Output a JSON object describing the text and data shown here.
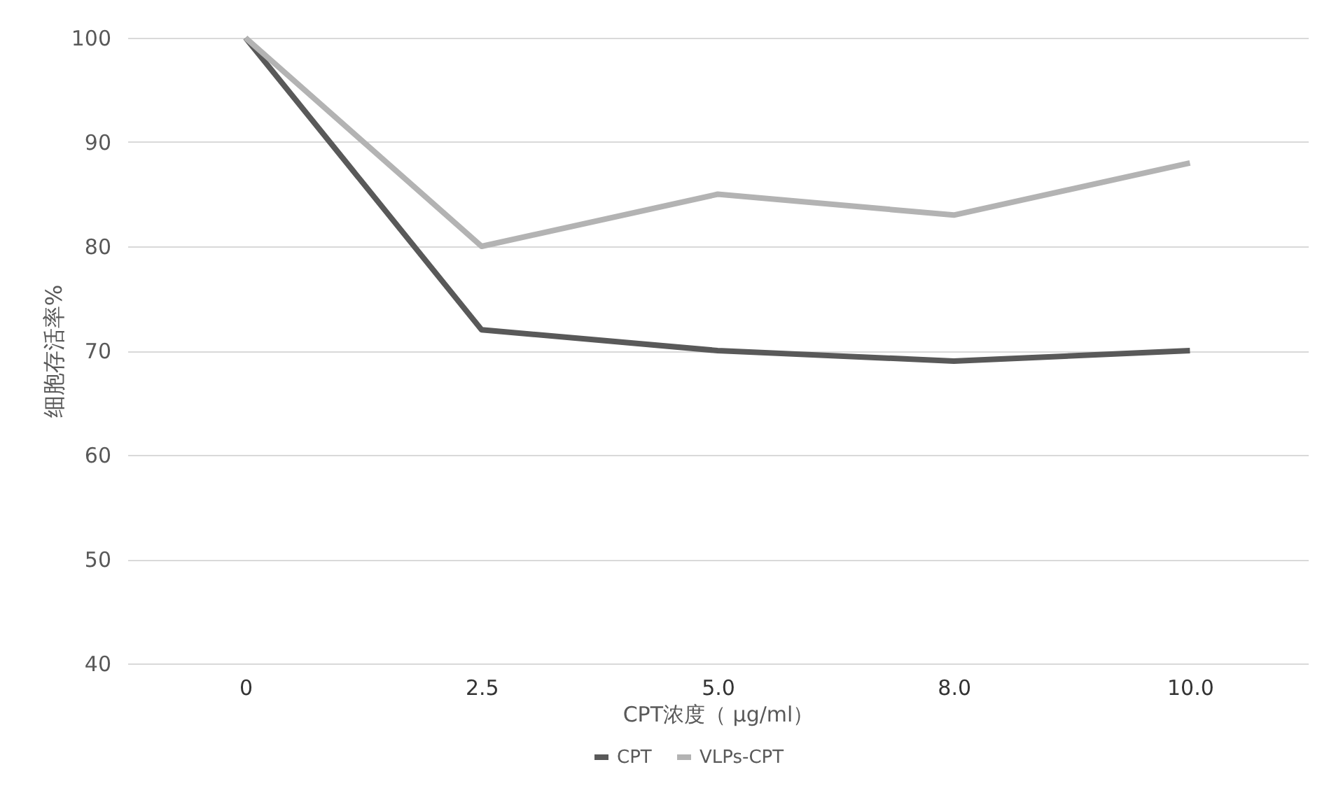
{
  "chart_data": {
    "type": "line",
    "xlabel": "CPT浓度（ μg/ml）",
    "ylabel": "细胞存活率%",
    "categories": [
      "0",
      "2.5",
      "5.0",
      "8.0",
      "10.0"
    ],
    "series": [
      {
        "name": "CPT",
        "color": "#595959",
        "values": [
          100,
          72,
          70,
          69,
          70
        ]
      },
      {
        "name": "VLPs-CPT",
        "color": "#b3b3b3",
        "values": [
          100,
          80,
          85,
          83,
          88
        ]
      }
    ],
    "ylim": [
      40,
      100
    ],
    "yticks": [
      40,
      50,
      60,
      70,
      80,
      90,
      100
    ],
    "grid": "y",
    "legend": "bottom",
    "marker": "none",
    "line_style": "solid"
  }
}
